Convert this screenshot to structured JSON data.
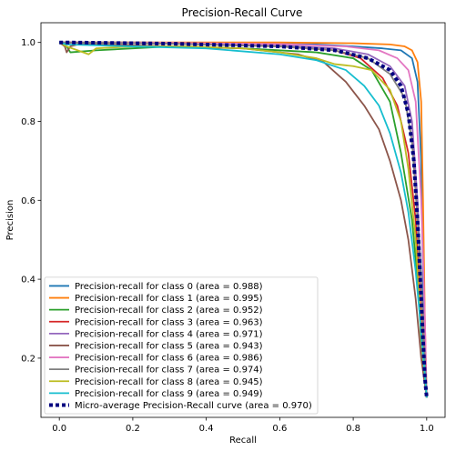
{
  "chart_data": {
    "type": "line",
    "title": "Precision-Recall Curve",
    "xlabel": "Recall",
    "ylabel": "Precision",
    "xlim": [
      -0.05,
      1.05
    ],
    "ylim": [
      0.05,
      1.05
    ],
    "xticks": [
      0.0,
      0.2,
      0.4,
      0.6,
      0.8,
      1.0
    ],
    "yticks": [
      0.2,
      0.4,
      0.6,
      0.8,
      1.0
    ],
    "xtick_labels": [
      "0.0",
      "0.2",
      "0.4",
      "0.6",
      "0.8",
      "1.0"
    ],
    "ytick_labels": [
      "0.2",
      "0.4",
      "0.6",
      "0.8",
      "1.0"
    ],
    "grid": false,
    "legend_position": "lower-left",
    "series": [
      {
        "name": "Precision-recall for class 0 (area = 0.988)",
        "color": "#1f77b4",
        "style": "solid",
        "x": [
          0.0,
          0.02,
          0.2,
          0.5,
          0.7,
          0.8,
          0.88,
          0.93,
          0.96,
          0.975,
          0.985,
          0.99,
          0.995,
          1.0
        ],
        "y": [
          1.0,
          1.0,
          1.0,
          0.998,
          0.995,
          0.99,
          0.985,
          0.98,
          0.96,
          0.9,
          0.7,
          0.4,
          0.2,
          0.1
        ]
      },
      {
        "name": "Precision-recall for class 1 (area = 0.995)",
        "color": "#ff7f0e",
        "style": "solid",
        "x": [
          0.0,
          0.02,
          0.3,
          0.6,
          0.8,
          0.9,
          0.94,
          0.96,
          0.975,
          0.985,
          0.99,
          0.995,
          1.0
        ],
        "y": [
          1.0,
          1.0,
          1.0,
          1.0,
          0.998,
          0.995,
          0.99,
          0.98,
          0.95,
          0.85,
          0.6,
          0.3,
          0.1
        ]
      },
      {
        "name": "Precision-recall for class 2 (area = 0.952)",
        "color": "#2ca02c",
        "style": "solid",
        "x": [
          0.0,
          0.02,
          0.03,
          0.1,
          0.2,
          0.3,
          0.5,
          0.7,
          0.8,
          0.85,
          0.9,
          0.93,
          0.96,
          0.975,
          0.985,
          1.0
        ],
        "y": [
          1.0,
          0.99,
          0.975,
          0.98,
          0.985,
          0.99,
          0.985,
          0.975,
          0.96,
          0.93,
          0.85,
          0.72,
          0.55,
          0.4,
          0.25,
          0.1
        ]
      },
      {
        "name": "Precision-recall for class 3 (area = 0.963)",
        "color": "#d62728",
        "style": "solid",
        "x": [
          0.0,
          0.02,
          0.3,
          0.6,
          0.75,
          0.82,
          0.88,
          0.92,
          0.95,
          0.97,
          0.985,
          1.0
        ],
        "y": [
          1.0,
          1.0,
          0.997,
          0.99,
          0.98,
          0.96,
          0.91,
          0.84,
          0.72,
          0.55,
          0.3,
          0.1
        ]
      },
      {
        "name": "Precision-recall for class 4 (area = 0.971)",
        "color": "#9467bd",
        "style": "solid",
        "x": [
          0.0,
          0.02,
          0.3,
          0.6,
          0.75,
          0.84,
          0.9,
          0.94,
          0.96,
          0.975,
          0.99,
          1.0
        ],
        "y": [
          1.0,
          1.0,
          0.998,
          0.992,
          0.985,
          0.97,
          0.94,
          0.89,
          0.8,
          0.6,
          0.3,
          0.1
        ]
      },
      {
        "name": "Precision-recall for class 5 (area = 0.943)",
        "color": "#8c564b",
        "style": "solid",
        "x": [
          0.0,
          0.015,
          0.02,
          0.03,
          0.05,
          0.1,
          0.3,
          0.5,
          0.65,
          0.72,
          0.78,
          0.83,
          0.87,
          0.9,
          0.93,
          0.95,
          0.97,
          0.985,
          1.0
        ],
        "y": [
          1.0,
          0.99,
          0.975,
          0.99,
          0.995,
          0.995,
          0.99,
          0.985,
          0.97,
          0.95,
          0.9,
          0.84,
          0.78,
          0.7,
          0.6,
          0.5,
          0.35,
          0.2,
          0.1
        ]
      },
      {
        "name": "Precision-recall for class 6 (area = 0.986)",
        "color": "#e377c2",
        "style": "solid",
        "x": [
          0.0,
          0.02,
          0.3,
          0.6,
          0.78,
          0.87,
          0.92,
          0.95,
          0.97,
          0.985,
          0.995,
          1.0
        ],
        "y": [
          1.0,
          1.0,
          0.999,
          0.996,
          0.99,
          0.98,
          0.96,
          0.93,
          0.85,
          0.6,
          0.3,
          0.1
        ]
      },
      {
        "name": "Precision-recall for class 7 (area = 0.974)",
        "color": "#7f7f7f",
        "style": "solid",
        "x": [
          0.0,
          0.02,
          0.3,
          0.6,
          0.75,
          0.84,
          0.9,
          0.94,
          0.96,
          0.975,
          0.99,
          1.0
        ],
        "y": [
          1.0,
          1.0,
          0.997,
          0.99,
          0.98,
          0.96,
          0.92,
          0.86,
          0.75,
          0.55,
          0.3,
          0.1
        ]
      },
      {
        "name": "Precision-recall for class 8 (area = 0.945)",
        "color": "#bcbd22",
        "style": "solid",
        "x": [
          0.0,
          0.02,
          0.05,
          0.08,
          0.1,
          0.2,
          0.35,
          0.5,
          0.6,
          0.7,
          0.75,
          0.8,
          0.85,
          0.9,
          0.93,
          0.95,
          0.97,
          0.98,
          0.99,
          1.0
        ],
        "y": [
          1.0,
          0.99,
          0.98,
          0.97,
          0.985,
          0.99,
          0.99,
          0.985,
          0.975,
          0.96,
          0.945,
          0.94,
          0.93,
          0.88,
          0.8,
          0.68,
          0.5,
          0.35,
          0.2,
          0.1
        ]
      },
      {
        "name": "Precision-recall for class 9 (area = 0.949)",
        "color": "#17becf",
        "style": "solid",
        "x": [
          0.0,
          0.02,
          0.2,
          0.4,
          0.6,
          0.7,
          0.78,
          0.83,
          0.87,
          0.9,
          0.93,
          0.95,
          0.97,
          0.985,
          1.0
        ],
        "y": [
          1.0,
          0.995,
          0.99,
          0.985,
          0.97,
          0.955,
          0.93,
          0.89,
          0.84,
          0.77,
          0.67,
          0.57,
          0.42,
          0.27,
          0.1
        ]
      },
      {
        "name": "Micro-average Precision-Recall curve (area = 0.970)",
        "color": "#000080",
        "style": "dotted",
        "x": [
          0.0,
          0.02,
          0.3,
          0.6,
          0.75,
          0.84,
          0.9,
          0.93,
          0.95,
          0.965,
          0.975,
          0.985,
          0.995,
          1.0
        ],
        "y": [
          1.0,
          1.0,
          0.997,
          0.99,
          0.98,
          0.96,
          0.93,
          0.89,
          0.82,
          0.7,
          0.55,
          0.35,
          0.15,
          0.1
        ]
      }
    ]
  }
}
